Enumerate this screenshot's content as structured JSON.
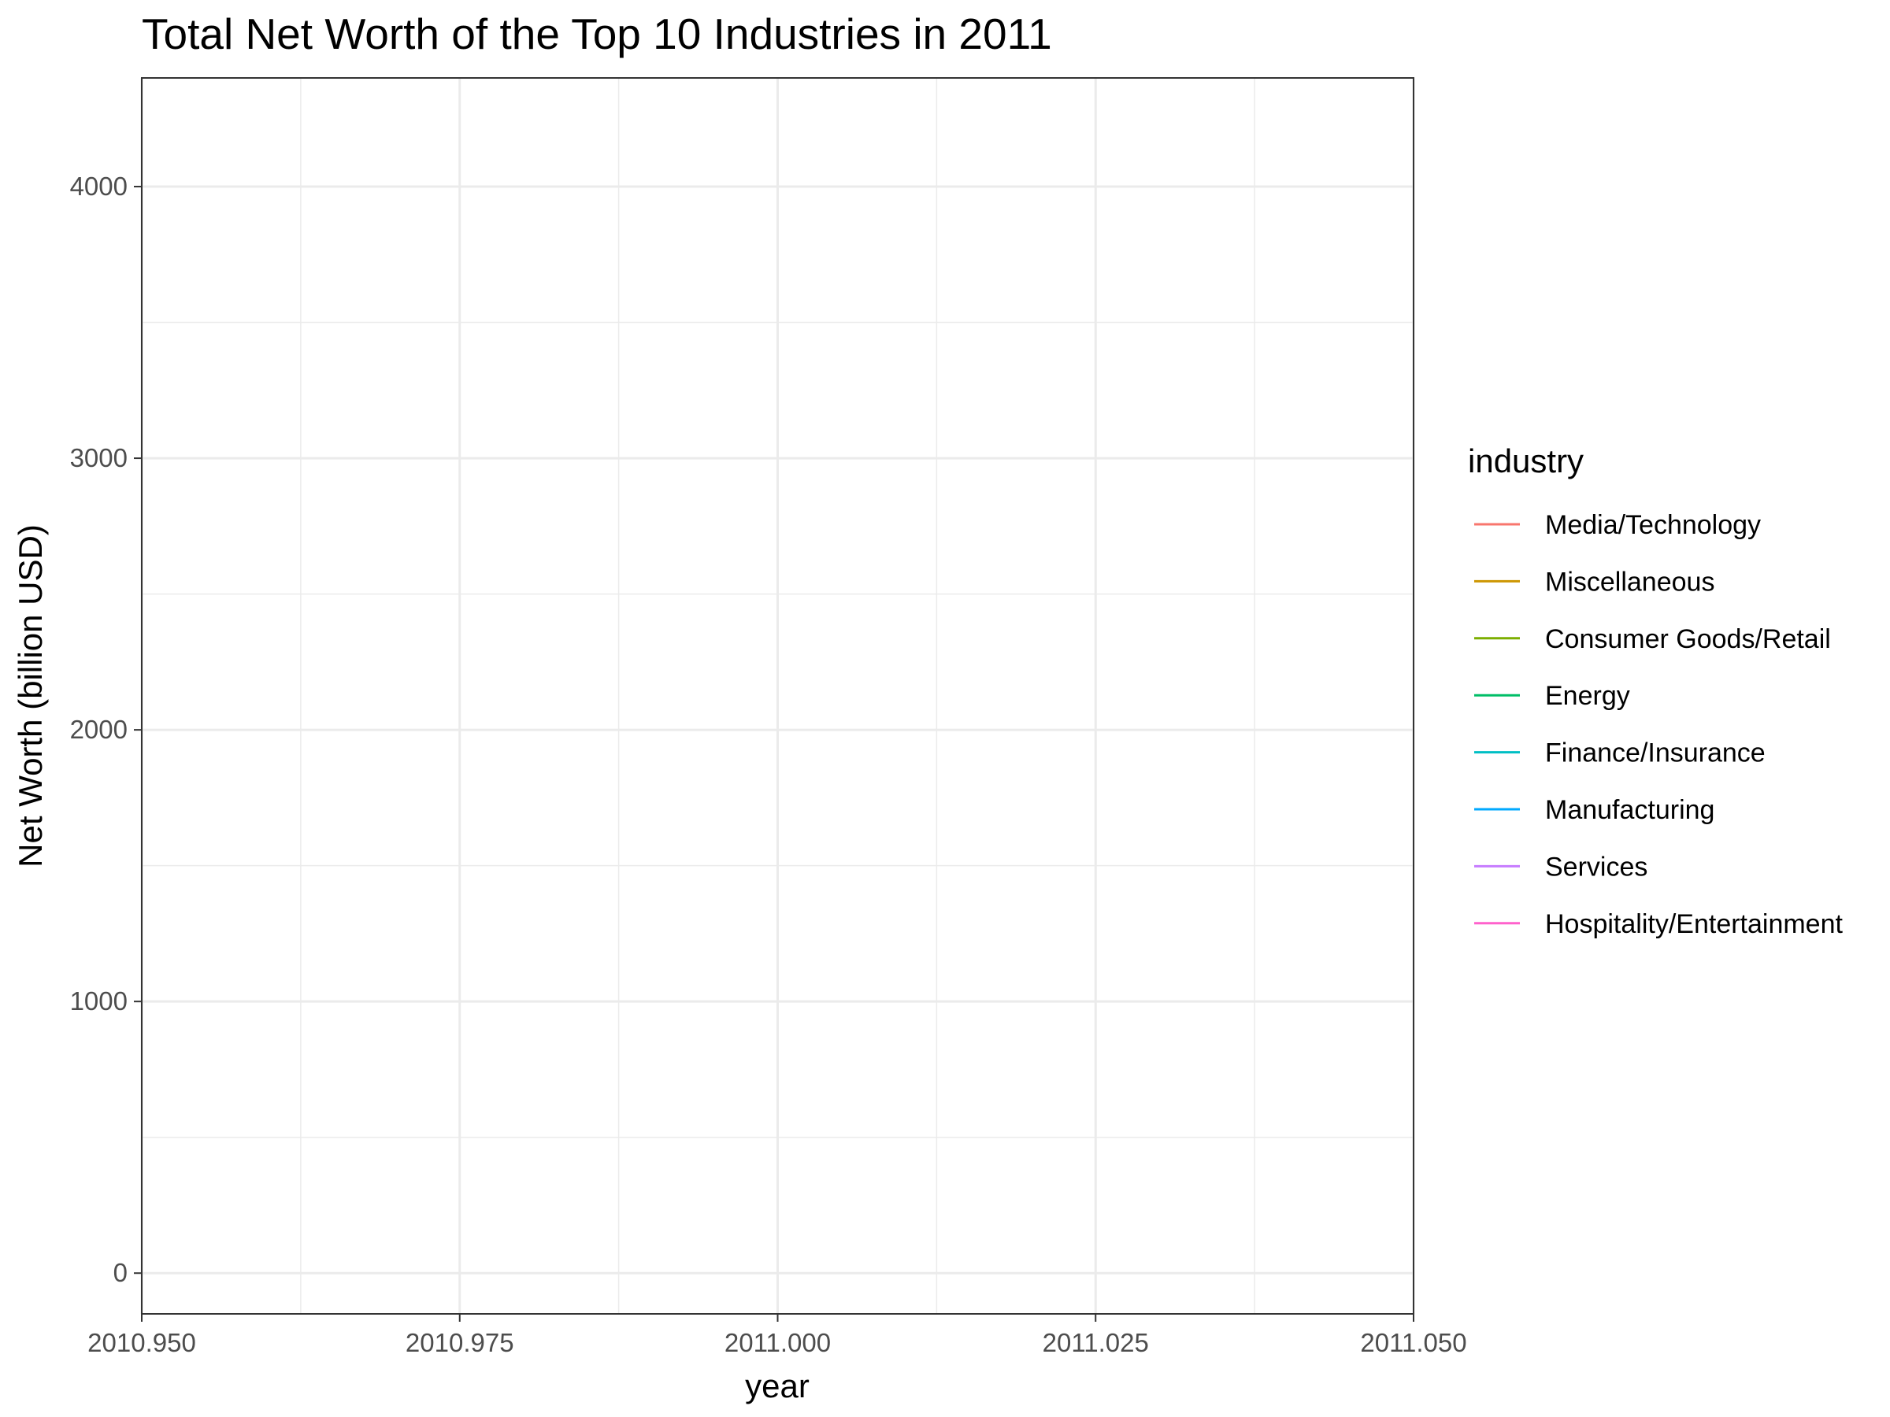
{
  "chart_data": {
    "type": "line",
    "title": "Total Net Worth of the Top 10 Industries in 2011",
    "xlabel": "year",
    "ylabel": "Net Worth (billion USD)",
    "xlim": [
      2010.95,
      2011.05
    ],
    "ylim": [
      -150,
      4400
    ],
    "x_ticks": [
      2010.95,
      2010.975,
      2011.0,
      2011.025,
      2011.05
    ],
    "x_tick_labels": [
      "2010.950",
      "2010.975",
      "2011.000",
      "2011.025",
      "2011.050"
    ],
    "y_ticks": [
      0,
      1000,
      2000,
      3000,
      4000
    ],
    "y_tick_labels": [
      "0",
      "1000",
      "2000",
      "3000",
      "4000"
    ],
    "grid": true,
    "legend_position": "right",
    "legend_title": "industry",
    "series": [
      {
        "name": "Media/Technology",
        "color": "#F8766D",
        "x": [],
        "values": []
      },
      {
        "name": "Miscellaneous",
        "color": "#CD9600",
        "x": [],
        "values": []
      },
      {
        "name": "Consumer Goods/Retail",
        "color": "#7CAE00",
        "x": [],
        "values": []
      },
      {
        "name": "Energy",
        "color": "#00BE67",
        "x": [],
        "values": []
      },
      {
        "name": "Finance/Insurance",
        "color": "#00BFC4",
        "x": [],
        "values": []
      },
      {
        "name": "Manufacturing",
        "color": "#00A9FF",
        "x": [],
        "values": []
      },
      {
        "name": "Services",
        "color": "#C77CFF",
        "x": [],
        "values": []
      },
      {
        "name": "Hospitality/Entertainment",
        "color": "#FF61CC",
        "x": [],
        "values": []
      }
    ]
  }
}
